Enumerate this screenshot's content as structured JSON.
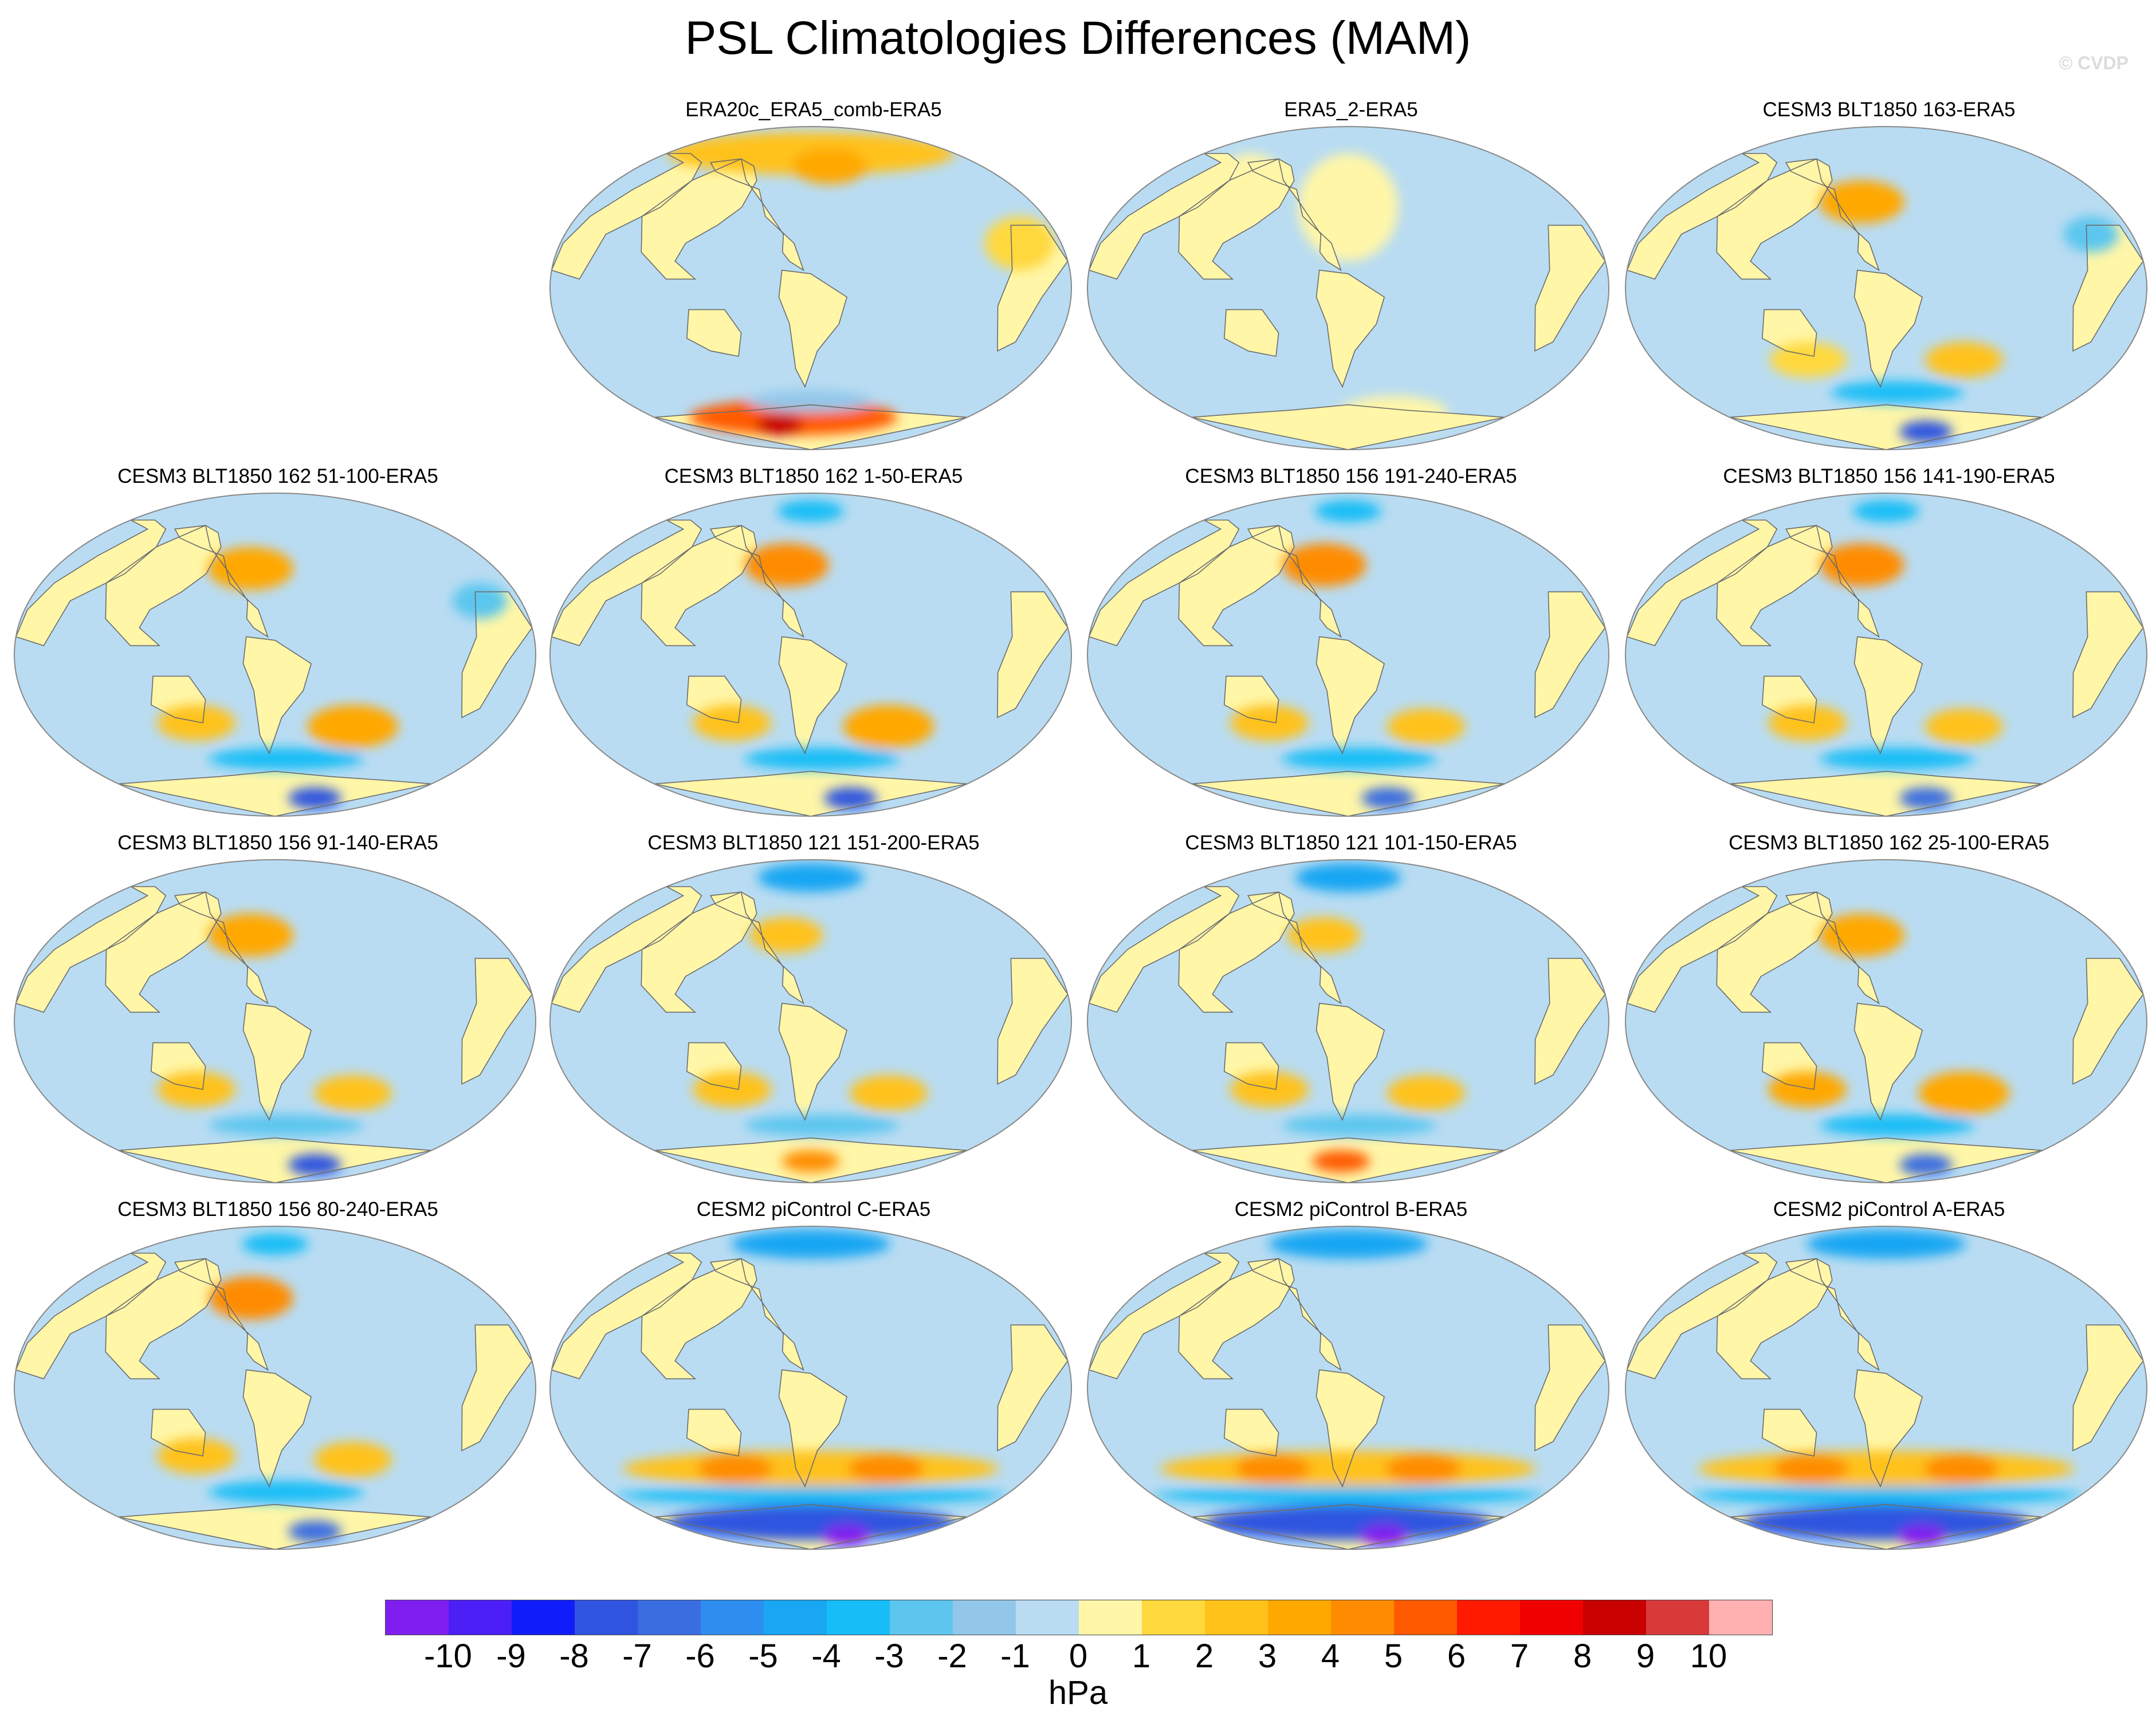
{
  "title": "PSL Climatologies Differences (MAM)",
  "watermark": "© CVDP",
  "palette": {
    "ocean_base": "#b9dcf2",
    "land_base": "#fff6a8",
    "coast": "#6b6b6b",
    "levels": [
      "#7f1fef",
      "#4b1ff5",
      "#101dfa",
      "#2f55e0",
      "#3a6de0",
      "#2e8ef0",
      "#19a6f3",
      "#17bdf6",
      "#5cc6ef",
      "#92c7ea",
      "#b9dcf2",
      "#fff6a8",
      "#ffd83d",
      "#ffc21a",
      "#ffa800",
      "#ff8c00",
      "#ff5a00",
      "#ff1a00",
      "#f00000",
      "#c80000",
      "#d83a3a",
      "#ffb1b1"
    ]
  },
  "panels": [
    {
      "title": "ERA20c_ERA5_comb-ERA5",
      "anomalies": [
        {
          "lon": 0,
          "lat": 75,
          "rx": 180,
          "ry": 12,
          "level": 2
        },
        {
          "lon": 20,
          "lat": 68,
          "rx": 40,
          "ry": 10,
          "level": 3
        },
        {
          "lon": -20,
          "lat": -72,
          "rx": 120,
          "ry": 10,
          "level": 5
        },
        {
          "lon": -40,
          "lat": -76,
          "rx": 30,
          "ry": 6,
          "level": 8
        },
        {
          "lon": 0,
          "lat": -63,
          "rx": 60,
          "ry": 6,
          "level": -1
        },
        {
          "lon": 150,
          "lat": 25,
          "rx": 25,
          "ry": 15,
          "level": 1
        }
      ]
    },
    {
      "title": "ERA5_2-ERA5",
      "anomalies": [
        {
          "lon": 0,
          "lat": 45,
          "rx": 40,
          "ry": 30,
          "level": 0
        },
        {
          "lon": -90,
          "lat": 60,
          "rx": 30,
          "ry": 15,
          "level": 0
        },
        {
          "lon": 50,
          "lat": -70,
          "rx": 60,
          "ry": 10,
          "level": 0
        }
      ]
    },
    {
      "title": "CESM3 BLT1850 163-ERA5",
      "anomalies": [
        {
          "lon": -20,
          "lat": 48,
          "rx": 35,
          "ry": 12,
          "level": 3
        },
        {
          "lon": 60,
          "lat": -40,
          "rx": 30,
          "ry": 10,
          "level": 2
        },
        {
          "lon": -60,
          "lat": -40,
          "rx": 30,
          "ry": 10,
          "level": 1
        },
        {
          "lon": 10,
          "lat": -58,
          "rx": 60,
          "ry": 6,
          "level": -3
        },
        {
          "lon": 60,
          "lat": -80,
          "rx": 40,
          "ry": 6,
          "level": -7
        },
        {
          "lon": 150,
          "lat": 30,
          "rx": 20,
          "ry": 10,
          "level": -2
        }
      ]
    },
    {
      "title": "CESM3 BLT1850 162 51-100-ERA5",
      "anomalies": [
        {
          "lon": -20,
          "lat": 48,
          "rx": 35,
          "ry": 12,
          "level": 3
        },
        {
          "lon": 60,
          "lat": -40,
          "rx": 35,
          "ry": 12,
          "level": 3
        },
        {
          "lon": -60,
          "lat": -38,
          "rx": 30,
          "ry": 10,
          "level": 2
        },
        {
          "lon": 10,
          "lat": -58,
          "rx": 70,
          "ry": 6,
          "level": -3
        },
        {
          "lon": 60,
          "lat": -80,
          "rx": 40,
          "ry": 6,
          "level": -7
        },
        {
          "lon": 150,
          "lat": 30,
          "rx": 20,
          "ry": 10,
          "level": -2
        }
      ]
    },
    {
      "title": "CESM3 BLT1850 162 1-50-ERA5",
      "anomalies": [
        {
          "lon": -20,
          "lat": 50,
          "rx": 35,
          "ry": 12,
          "level": 4
        },
        {
          "lon": 0,
          "lat": 80,
          "rx": 50,
          "ry": 6,
          "level": -3
        },
        {
          "lon": 60,
          "lat": -40,
          "rx": 35,
          "ry": 12,
          "level": 3
        },
        {
          "lon": -60,
          "lat": -38,
          "rx": 30,
          "ry": 10,
          "level": 2
        },
        {
          "lon": 10,
          "lat": -58,
          "rx": 70,
          "ry": 6,
          "level": -3
        },
        {
          "lon": 60,
          "lat": -80,
          "rx": 40,
          "ry": 6,
          "level": -7
        }
      ]
    },
    {
      "title": "CESM3 BLT1850 156 191-240-ERA5",
      "anomalies": [
        {
          "lon": -20,
          "lat": 50,
          "rx": 35,
          "ry": 12,
          "level": 4
        },
        {
          "lon": 0,
          "lat": 80,
          "rx": 50,
          "ry": 6,
          "level": -3
        },
        {
          "lon": 60,
          "lat": -40,
          "rx": 30,
          "ry": 10,
          "level": 2
        },
        {
          "lon": -60,
          "lat": -38,
          "rx": 30,
          "ry": 10,
          "level": 2
        },
        {
          "lon": 10,
          "lat": -58,
          "rx": 70,
          "ry": 6,
          "level": -3
        },
        {
          "lon": 60,
          "lat": -80,
          "rx": 40,
          "ry": 6,
          "level": -6
        }
      ]
    },
    {
      "title": "CESM3 BLT1850 156 141-190-ERA5",
      "anomalies": [
        {
          "lon": -20,
          "lat": 50,
          "rx": 35,
          "ry": 12,
          "level": 4
        },
        {
          "lon": 0,
          "lat": 80,
          "rx": 50,
          "ry": 6,
          "level": -3
        },
        {
          "lon": 60,
          "lat": -40,
          "rx": 30,
          "ry": 10,
          "level": 2
        },
        {
          "lon": -60,
          "lat": -38,
          "rx": 30,
          "ry": 10,
          "level": 2
        },
        {
          "lon": 10,
          "lat": -58,
          "rx": 70,
          "ry": 6,
          "level": -3
        },
        {
          "lon": 60,
          "lat": -80,
          "rx": 40,
          "ry": 6,
          "level": -6
        }
      ]
    },
    {
      "title": "CESM3 BLT1850 156 91-140-ERA5",
      "anomalies": [
        {
          "lon": -20,
          "lat": 48,
          "rx": 35,
          "ry": 12,
          "level": 3
        },
        {
          "lon": 60,
          "lat": -40,
          "rx": 30,
          "ry": 10,
          "level": 2
        },
        {
          "lon": -60,
          "lat": -38,
          "rx": 30,
          "ry": 10,
          "level": 2
        },
        {
          "lon": 10,
          "lat": -58,
          "rx": 70,
          "ry": 6,
          "level": -2
        },
        {
          "lon": 60,
          "lat": -80,
          "rx": 40,
          "ry": 6,
          "level": -7
        }
      ]
    },
    {
      "title": "CESM3 BLT1850 121 151-200-ERA5",
      "anomalies": [
        {
          "lon": 0,
          "lat": 80,
          "rx": 80,
          "ry": 8,
          "level": -4
        },
        {
          "lon": -20,
          "lat": 48,
          "rx": 30,
          "ry": 10,
          "level": 2
        },
        {
          "lon": 60,
          "lat": -40,
          "rx": 30,
          "ry": 10,
          "level": 2
        },
        {
          "lon": -60,
          "lat": -38,
          "rx": 30,
          "ry": 10,
          "level": 2
        },
        {
          "lon": 10,
          "lat": -58,
          "rx": 70,
          "ry": 6,
          "level": -2
        },
        {
          "lon": 0,
          "lat": -78,
          "rx": 40,
          "ry": 6,
          "level": 4
        }
      ]
    },
    {
      "title": "CESM3 BLT1850 121 101-150-ERA5",
      "anomalies": [
        {
          "lon": 0,
          "lat": 80,
          "rx": 80,
          "ry": 8,
          "level": -4
        },
        {
          "lon": -20,
          "lat": 48,
          "rx": 30,
          "ry": 10,
          "level": 2
        },
        {
          "lon": 60,
          "lat": -40,
          "rx": 30,
          "ry": 10,
          "level": 2
        },
        {
          "lon": -60,
          "lat": -38,
          "rx": 30,
          "ry": 10,
          "level": 2
        },
        {
          "lon": 10,
          "lat": -58,
          "rx": 70,
          "ry": 6,
          "level": -2
        },
        {
          "lon": -10,
          "lat": -78,
          "rx": 40,
          "ry": 6,
          "level": 5
        }
      ]
    },
    {
      "title": "CESM3 BLT1850 162 25-100-ERA5",
      "anomalies": [
        {
          "lon": -20,
          "lat": 48,
          "rx": 35,
          "ry": 12,
          "level": 3
        },
        {
          "lon": 60,
          "lat": -40,
          "rx": 35,
          "ry": 12,
          "level": 3
        },
        {
          "lon": -60,
          "lat": -38,
          "rx": 30,
          "ry": 10,
          "level": 3
        },
        {
          "lon": 10,
          "lat": -58,
          "rx": 70,
          "ry": 6,
          "level": -3
        },
        {
          "lon": 60,
          "lat": -80,
          "rx": 40,
          "ry": 6,
          "level": -6
        }
      ]
    },
    {
      "title": "CESM3 BLT1850 156 80-240-ERA5",
      "anomalies": [
        {
          "lon": -20,
          "lat": 50,
          "rx": 35,
          "ry": 12,
          "level": 4
        },
        {
          "lon": 0,
          "lat": 80,
          "rx": 50,
          "ry": 6,
          "level": -3
        },
        {
          "lon": 60,
          "lat": -40,
          "rx": 30,
          "ry": 10,
          "level": 2
        },
        {
          "lon": -60,
          "lat": -38,
          "rx": 30,
          "ry": 10,
          "level": 2
        },
        {
          "lon": 10,
          "lat": -58,
          "rx": 70,
          "ry": 6,
          "level": -3
        },
        {
          "lon": 60,
          "lat": -80,
          "rx": 40,
          "ry": 6,
          "level": -6
        }
      ]
    },
    {
      "title": "CESM2 piControl C-ERA5",
      "anomalies": [
        {
          "lon": 0,
          "lat": 80,
          "rx": 120,
          "ry": 8,
          "level": -4
        },
        {
          "lon": 0,
          "lat": -45,
          "rx": 150,
          "ry": 10,
          "level": 2
        },
        {
          "lon": 60,
          "lat": -45,
          "rx": 30,
          "ry": 8,
          "level": 4
        },
        {
          "lon": -60,
          "lat": -45,
          "rx": 30,
          "ry": 8,
          "level": 4
        },
        {
          "lon": 0,
          "lat": -60,
          "rx": 180,
          "ry": 5,
          "level": -3
        },
        {
          "lon": 0,
          "lat": -75,
          "rx": 180,
          "ry": 10,
          "level": -7
        },
        {
          "lon": 60,
          "lat": -82,
          "rx": 40,
          "ry": 6,
          "level": -10
        }
      ]
    },
    {
      "title": "CESM2 piControl B-ERA5",
      "anomalies": [
        {
          "lon": 0,
          "lat": 80,
          "rx": 120,
          "ry": 8,
          "level": -4
        },
        {
          "lon": 0,
          "lat": -45,
          "rx": 150,
          "ry": 10,
          "level": 2
        },
        {
          "lon": 60,
          "lat": -45,
          "rx": 30,
          "ry": 8,
          "level": 4
        },
        {
          "lon": -60,
          "lat": -45,
          "rx": 30,
          "ry": 8,
          "level": 4
        },
        {
          "lon": 0,
          "lat": -60,
          "rx": 180,
          "ry": 5,
          "level": -3
        },
        {
          "lon": 0,
          "lat": -75,
          "rx": 180,
          "ry": 10,
          "level": -7
        },
        {
          "lon": 60,
          "lat": -82,
          "rx": 40,
          "ry": 6,
          "level": -10
        }
      ]
    },
    {
      "title": "CESM2 piControl A-ERA5",
      "anomalies": [
        {
          "lon": 0,
          "lat": 80,
          "rx": 120,
          "ry": 8,
          "level": -4
        },
        {
          "lon": 0,
          "lat": -45,
          "rx": 150,
          "ry": 10,
          "level": 2
        },
        {
          "lon": 60,
          "lat": -45,
          "rx": 30,
          "ry": 8,
          "level": 4
        },
        {
          "lon": -60,
          "lat": -45,
          "rx": 30,
          "ry": 8,
          "level": 4
        },
        {
          "lon": 0,
          "lat": -60,
          "rx": 180,
          "ry": 5,
          "level": -3
        },
        {
          "lon": 0,
          "lat": -75,
          "rx": 180,
          "ry": 10,
          "level": -7
        },
        {
          "lon": 60,
          "lat": -82,
          "rx": 40,
          "ry": 6,
          "level": -10
        }
      ]
    }
  ],
  "colorbar": {
    "tick_labels": [
      "-10",
      "-9",
      "-8",
      "-7",
      "-6",
      "-5",
      "-4",
      "-3",
      "-2",
      "-1",
      "0",
      "1",
      "2",
      "3",
      "4",
      "5",
      "6",
      "7",
      "8",
      "9",
      "10"
    ],
    "units": "hPa"
  }
}
